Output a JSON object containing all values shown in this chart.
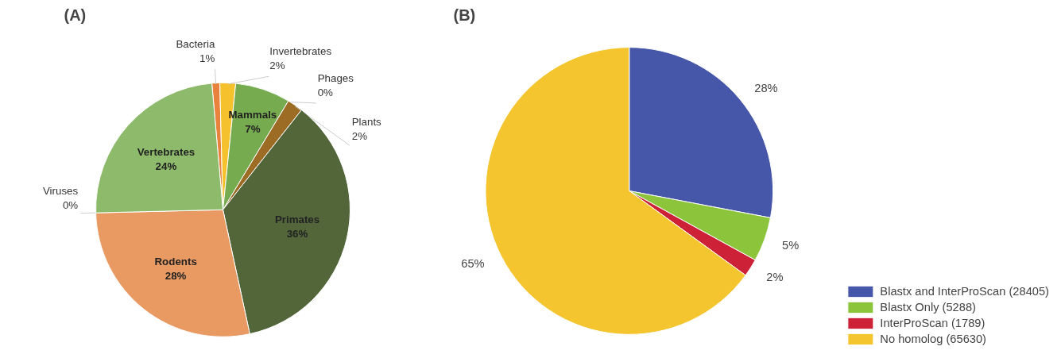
{
  "chart_data": [
    {
      "type": "pie",
      "title": "(A)",
      "categories": [
        "Bacteria",
        "Invertebrates",
        "Mammals",
        "Phages",
        "Plants",
        "Primates",
        "Rodents",
        "Viruses",
        "Vertebrates"
      ],
      "values": [
        1,
        2,
        7,
        0,
        2,
        36,
        28,
        0,
        24
      ],
      "value_labels": [
        "1%",
        "2%",
        "7%",
        "0%",
        "2%",
        "36%",
        "28%",
        "0%",
        "24%"
      ],
      "colors": [
        "#e8823c",
        "#f5c12c",
        "#77ab4f",
        "#b0b0b0",
        "#9c6b24",
        "#53663a",
        "#e99a63",
        "#f0a868",
        "#8dbb6b"
      ],
      "legend": false
    },
    {
      "type": "pie",
      "title": "(B)",
      "categories": [
        "Blastx and InterProScan (28405)",
        "Blastx Only (5288)",
        "InterProScan (1789)",
        "No homolog (65630)"
      ],
      "values": [
        28,
        5,
        2,
        65
      ],
      "value_labels": [
        "28%",
        "5%",
        "2%",
        "65%"
      ],
      "colors": [
        "#4656a8",
        "#8cc43c",
        "#cc2136",
        "#f4c52e"
      ],
      "legend": "bottom right"
    }
  ]
}
